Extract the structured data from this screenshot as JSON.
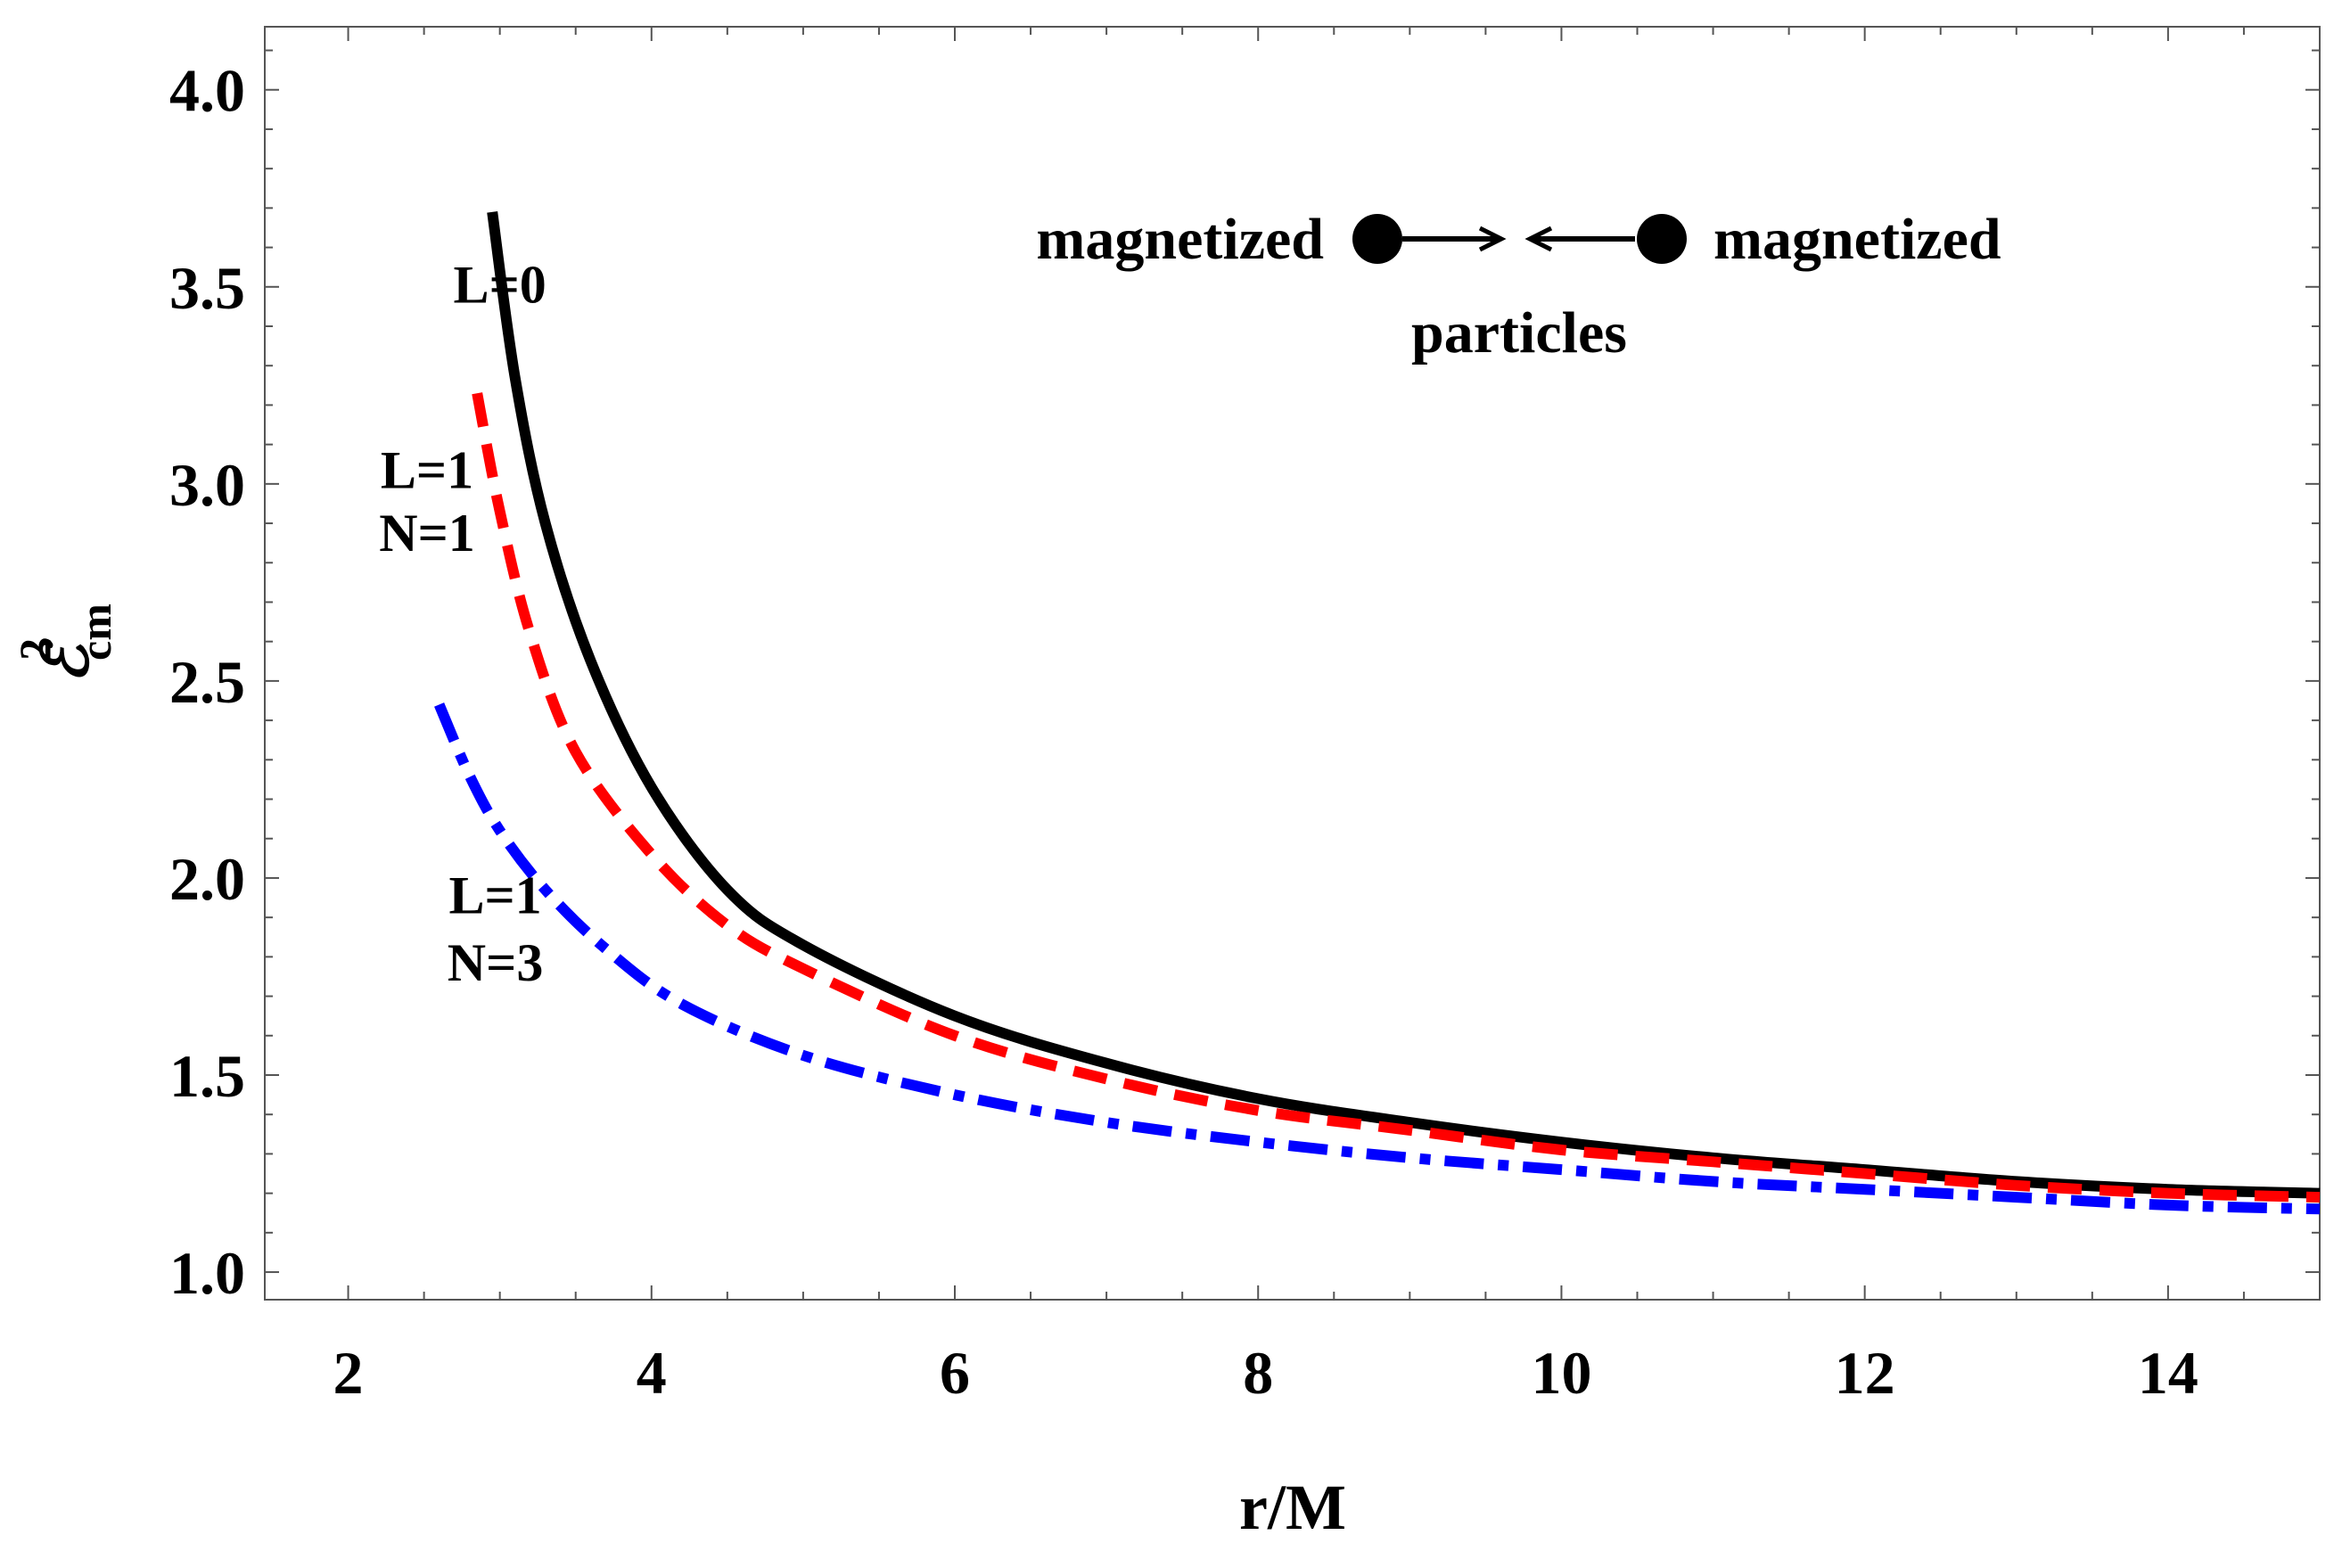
{
  "chart_data": {
    "type": "line",
    "title": "",
    "xlabel": "r/M",
    "ylabel_main": "ℰ",
    "ylabel_sup": "2",
    "ylabel_sub": "cm",
    "xlim": [
      1.45,
      15.0
    ],
    "ylim": [
      0.93,
      4.16
    ],
    "xticks": [
      2,
      4,
      6,
      8,
      10,
      12,
      14
    ],
    "xtick_labels": [
      "2",
      "4",
      "6",
      "8",
      "10",
      "12",
      "14"
    ],
    "yticks": [
      1.0,
      1.5,
      2.0,
      2.5,
      3.0,
      3.5,
      4.0
    ],
    "ytick_labels": [
      "1.0",
      "1.5",
      "2.0",
      "2.5",
      "3.0",
      "3.5",
      "4.0"
    ],
    "grid": false,
    "series": [
      {
        "name": "L=0",
        "color": "#000000",
        "style": "solid",
        "x": [
          2.95,
          3.1,
          3.3,
          3.6,
          4.0,
          4.5,
          5.0,
          6.0,
          7.0,
          8.0,
          9.0,
          10.0,
          11.0,
          12.0,
          13.0,
          14.0,
          15.0
        ],
        "y": [
          3.69,
          3.27,
          2.9,
          2.55,
          2.23,
          1.97,
          1.83,
          1.65,
          1.53,
          1.44,
          1.38,
          1.33,
          1.29,
          1.26,
          1.23,
          1.21,
          1.2
        ]
      },
      {
        "name": "L=1, N=1",
        "color": "#ff0000",
        "style": "dashed",
        "x": [
          2.85,
          3.0,
          3.2,
          3.5,
          4.0,
          4.5,
          5.0,
          6.0,
          7.0,
          8.0,
          9.0,
          10.0,
          11.0,
          12.0,
          13.0,
          14.0,
          15.0
        ],
        "y": [
          3.23,
          2.93,
          2.62,
          2.32,
          2.06,
          1.88,
          1.77,
          1.6,
          1.49,
          1.41,
          1.36,
          1.31,
          1.28,
          1.25,
          1.22,
          1.2,
          1.19
        ]
      },
      {
        "name": "L=1, N=3",
        "color": "#0000ff",
        "style": "dashdot",
        "x": [
          2.6,
          2.8,
          3.0,
          3.3,
          3.7,
          4.2,
          5.0,
          6.0,
          7.0,
          8.0,
          9.0,
          10.0,
          11.0,
          12.0,
          13.0,
          14.0,
          15.0
        ],
        "y": [
          2.44,
          2.26,
          2.12,
          1.97,
          1.82,
          1.68,
          1.55,
          1.45,
          1.38,
          1.33,
          1.29,
          1.26,
          1.23,
          1.21,
          1.19,
          1.17,
          1.16
        ]
      }
    ],
    "annotations": [
      {
        "text": "L=0",
        "x": 3.0,
        "y": 3.46
      },
      {
        "text": "L=1",
        "x": 2.52,
        "y": 2.99
      },
      {
        "text": "N=1",
        "x": 2.52,
        "y": 2.83
      },
      {
        "text": "L=1",
        "x": 2.97,
        "y": 1.91
      },
      {
        "text": "N=3",
        "x": 2.97,
        "y": 1.74
      }
    ],
    "legend": {
      "left_label": "magnetized",
      "right_label": "magnetized",
      "caption": "particles"
    }
  }
}
